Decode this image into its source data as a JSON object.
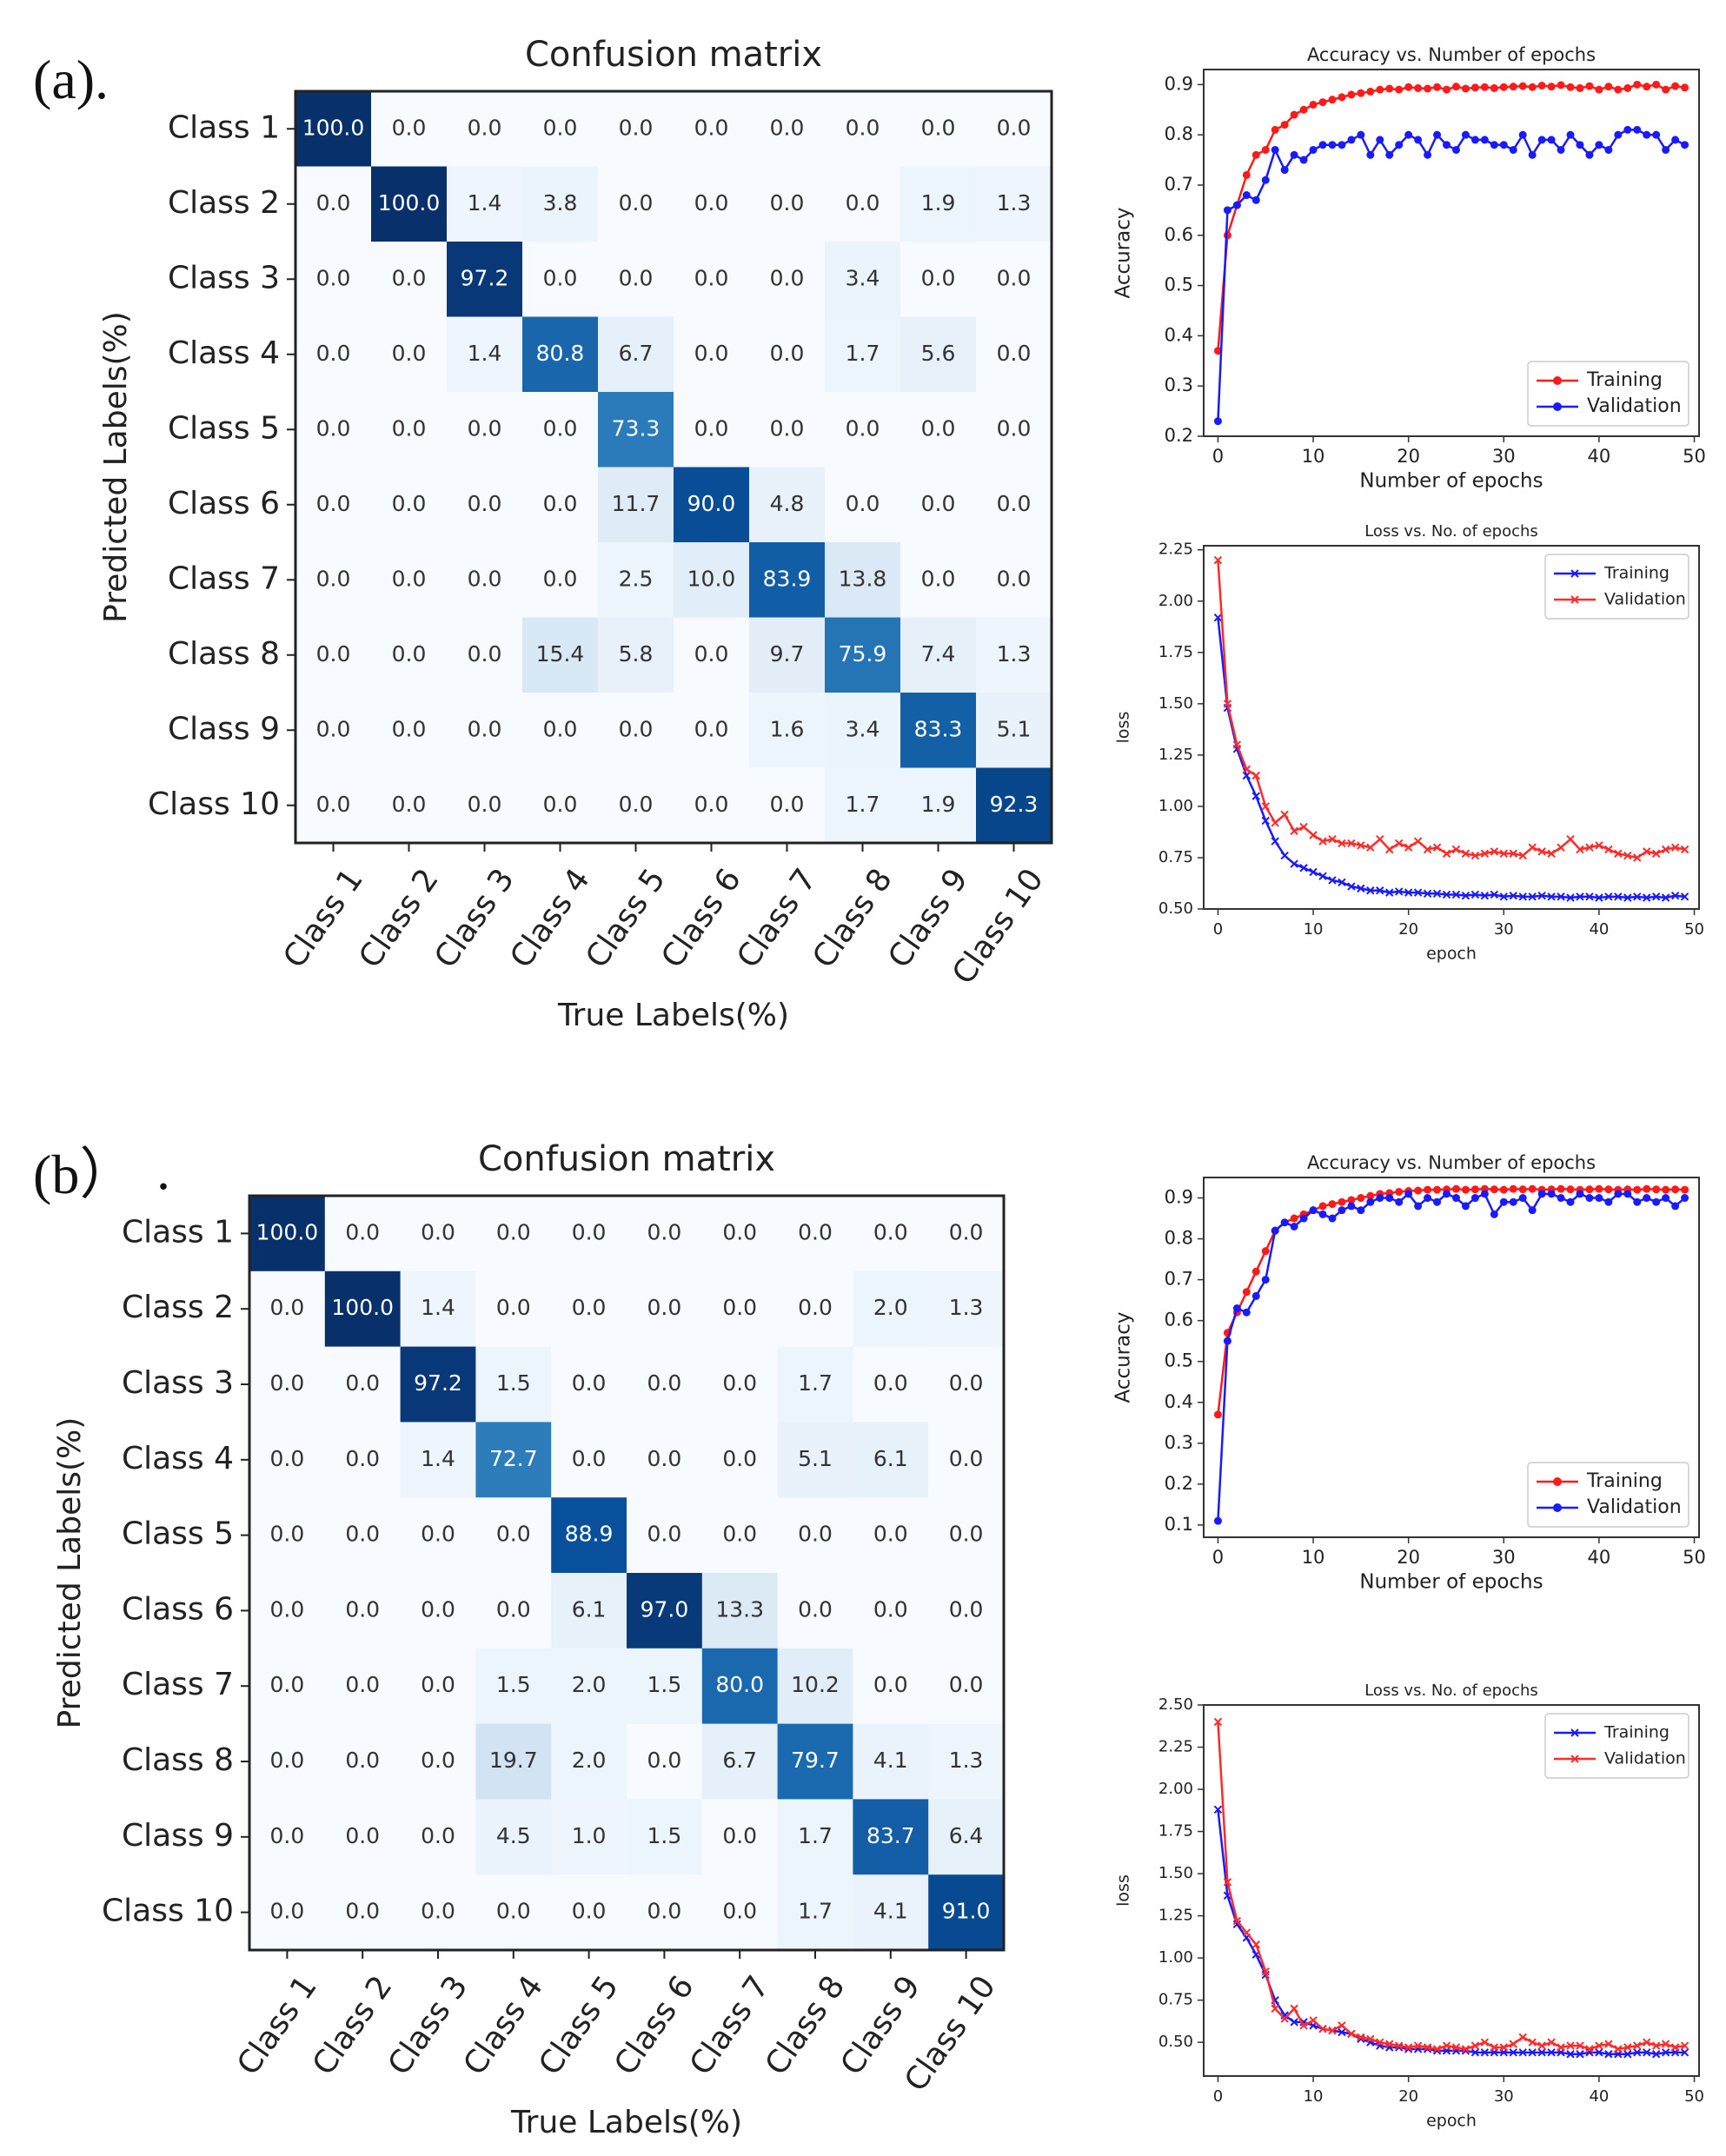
{
  "panels": {
    "a": "(a).",
    "b": "(b）",
    "b_dot": "."
  },
  "chart_data": [
    {
      "id": "cm_a",
      "type": "heatmap",
      "title": "Confusion matrix",
      "xlabel": "True Labels(%)",
      "ylabel": "Predicted Labels(%)",
      "row_labels": [
        "Class 1",
        "Class 2",
        "Class 3",
        "Class 4",
        "Class 5",
        "Class 6",
        "Class 7",
        "Class 8",
        "Class 9",
        "Class 10"
      ],
      "col_labels": [
        "Class 1",
        "Class 2",
        "Class 3",
        "Class 4",
        "Class 5",
        "Class 6",
        "Class 7",
        "Class 8",
        "Class 9",
        "Class 10"
      ],
      "values": [
        [
          100.0,
          0.0,
          0.0,
          0.0,
          0.0,
          0.0,
          0.0,
          0.0,
          0.0,
          0.0
        ],
        [
          0.0,
          100.0,
          1.4,
          3.8,
          0.0,
          0.0,
          0.0,
          0.0,
          1.9,
          1.3
        ],
        [
          0.0,
          0.0,
          97.2,
          0.0,
          0.0,
          0.0,
          0.0,
          3.4,
          0.0,
          0.0
        ],
        [
          0.0,
          0.0,
          1.4,
          80.8,
          6.7,
          0.0,
          0.0,
          1.7,
          5.6,
          0.0
        ],
        [
          0.0,
          0.0,
          0.0,
          0.0,
          73.3,
          0.0,
          0.0,
          0.0,
          0.0,
          0.0
        ],
        [
          0.0,
          0.0,
          0.0,
          0.0,
          11.7,
          90.0,
          4.8,
          0.0,
          0.0,
          0.0
        ],
        [
          0.0,
          0.0,
          0.0,
          0.0,
          2.5,
          10.0,
          83.9,
          13.8,
          0.0,
          0.0
        ],
        [
          0.0,
          0.0,
          0.0,
          15.4,
          5.8,
          0.0,
          9.7,
          75.9,
          7.4,
          1.3
        ],
        [
          0.0,
          0.0,
          0.0,
          0.0,
          0.0,
          0.0,
          1.6,
          3.4,
          83.3,
          5.1
        ],
        [
          0.0,
          0.0,
          0.0,
          0.0,
          0.0,
          0.0,
          0.0,
          1.7,
          1.9,
          92.3
        ]
      ],
      "colormap": "Blues"
    },
    {
      "id": "acc_a",
      "type": "line",
      "title": "Accuracy vs. Number of epochs",
      "xlabel": "Number of epochs",
      "ylabel": "Accuracy",
      "xlim": [
        -1.5,
        50.5
      ],
      "ylim": [
        0.2,
        0.93
      ],
      "xticks": [
        0,
        10,
        20,
        30,
        40,
        50
      ],
      "yticks": [
        0.2,
        0.3,
        0.4,
        0.5,
        0.6,
        0.7,
        0.8,
        0.9
      ],
      "legend_position": "bottom-right",
      "marker": "circle",
      "series": [
        {
          "name": "Training",
          "color": "#ff1a1a",
          "values": [
            0.37,
            0.6,
            0.66,
            0.72,
            0.76,
            0.77,
            0.81,
            0.82,
            0.84,
            0.85,
            0.86,
            0.865,
            0.87,
            0.875,
            0.88,
            0.883,
            0.886,
            0.89,
            0.892,
            0.89,
            0.895,
            0.893,
            0.892,
            0.895,
            0.89,
            0.896,
            0.892,
            0.894,
            0.895,
            0.893,
            0.895,
            0.896,
            0.897,
            0.895,
            0.898,
            0.896,
            0.899,
            0.895,
            0.893,
            0.897,
            0.89,
            0.896,
            0.89,
            0.893,
            0.9,
            0.896,
            0.9,
            0.89,
            0.897,
            0.894
          ]
        },
        {
          "name": "Validation",
          "color": "#1a1aff",
          "values": [
            0.23,
            0.65,
            0.66,
            0.68,
            0.67,
            0.71,
            0.77,
            0.73,
            0.76,
            0.75,
            0.77,
            0.78,
            0.78,
            0.78,
            0.79,
            0.8,
            0.76,
            0.79,
            0.76,
            0.78,
            0.8,
            0.79,
            0.76,
            0.8,
            0.78,
            0.77,
            0.8,
            0.79,
            0.79,
            0.78,
            0.78,
            0.77,
            0.8,
            0.76,
            0.79,
            0.79,
            0.77,
            0.8,
            0.78,
            0.76,
            0.78,
            0.77,
            0.8,
            0.81,
            0.81,
            0.8,
            0.8,
            0.77,
            0.79,
            0.78
          ]
        }
      ]
    },
    {
      "id": "loss_a",
      "type": "line",
      "title": "Loss vs. No. of epochs",
      "xlabel": "epoch",
      "ylabel": "loss",
      "xlim": [
        -1.5,
        50.5
      ],
      "ylim": [
        0.5,
        2.27
      ],
      "xticks": [
        0,
        10,
        20,
        30,
        40,
        50
      ],
      "yticks": [
        0.5,
        0.75,
        1.0,
        1.25,
        1.5,
        1.75,
        2.0,
        2.25
      ],
      "legend_position": "top-right",
      "marker": "x",
      "series": [
        {
          "name": "Training",
          "color": "#1a1aff",
          "values": [
            1.92,
            1.48,
            1.28,
            1.15,
            1.05,
            0.93,
            0.83,
            0.76,
            0.72,
            0.7,
            0.68,
            0.66,
            0.64,
            0.63,
            0.61,
            0.6,
            0.59,
            0.59,
            0.58,
            0.585,
            0.58,
            0.58,
            0.575,
            0.575,
            0.57,
            0.57,
            0.565,
            0.57,
            0.565,
            0.57,
            0.56,
            0.565,
            0.56,
            0.56,
            0.565,
            0.56,
            0.56,
            0.555,
            0.56,
            0.56,
            0.555,
            0.56,
            0.56,
            0.555,
            0.56,
            0.555,
            0.56,
            0.555,
            0.565,
            0.56
          ]
        },
        {
          "name": "Validation",
          "color": "#ff2a2a",
          "values": [
            2.2,
            1.5,
            1.3,
            1.18,
            1.15,
            1.0,
            0.92,
            0.96,
            0.88,
            0.9,
            0.86,
            0.83,
            0.84,
            0.82,
            0.82,
            0.81,
            0.8,
            0.84,
            0.79,
            0.82,
            0.8,
            0.83,
            0.79,
            0.8,
            0.77,
            0.79,
            0.77,
            0.76,
            0.77,
            0.78,
            0.77,
            0.77,
            0.76,
            0.8,
            0.78,
            0.77,
            0.8,
            0.84,
            0.79,
            0.8,
            0.81,
            0.79,
            0.77,
            0.76,
            0.75,
            0.78,
            0.77,
            0.79,
            0.8,
            0.79
          ]
        }
      ]
    },
    {
      "id": "cm_b",
      "type": "heatmap",
      "title": "Confusion matrix",
      "xlabel": "True Labels(%)",
      "ylabel": "Predicted Labels(%)",
      "row_labels": [
        "Class 1",
        "Class 2",
        "Class 3",
        "Class 4",
        "Class 5",
        "Class 6",
        "Class 7",
        "Class 8",
        "Class 9",
        "Class 10"
      ],
      "col_labels": [
        "Class 1",
        "Class 2",
        "Class 3",
        "Class 4",
        "Class 5",
        "Class 6",
        "Class 7",
        "Class 8",
        "Class 9",
        "Class 10"
      ],
      "values": [
        [
          100.0,
          0.0,
          0.0,
          0.0,
          0.0,
          0.0,
          0.0,
          0.0,
          0.0,
          0.0
        ],
        [
          0.0,
          100.0,
          1.4,
          0.0,
          0.0,
          0.0,
          0.0,
          0.0,
          2.0,
          1.3
        ],
        [
          0.0,
          0.0,
          97.2,
          1.5,
          0.0,
          0.0,
          0.0,
          1.7,
          0.0,
          0.0
        ],
        [
          0.0,
          0.0,
          1.4,
          72.7,
          0.0,
          0.0,
          0.0,
          5.1,
          6.1,
          0.0
        ],
        [
          0.0,
          0.0,
          0.0,
          0.0,
          88.9,
          0.0,
          0.0,
          0.0,
          0.0,
          0.0
        ],
        [
          0.0,
          0.0,
          0.0,
          0.0,
          6.1,
          97.0,
          13.3,
          0.0,
          0.0,
          0.0
        ],
        [
          0.0,
          0.0,
          0.0,
          1.5,
          2.0,
          1.5,
          80.0,
          10.2,
          0.0,
          0.0
        ],
        [
          0.0,
          0.0,
          0.0,
          19.7,
          2.0,
          0.0,
          6.7,
          79.7,
          4.1,
          1.3
        ],
        [
          0.0,
          0.0,
          0.0,
          4.5,
          1.0,
          1.5,
          0.0,
          1.7,
          83.7,
          6.4
        ],
        [
          0.0,
          0.0,
          0.0,
          0.0,
          0.0,
          0.0,
          0.0,
          1.7,
          4.1,
          91.0
        ]
      ],
      "colormap": "Blues"
    },
    {
      "id": "acc_b",
      "type": "line",
      "title": "Accuracy vs. Number of epochs",
      "xlabel": "Number of epochs",
      "ylabel": "Accuracy",
      "xlim": [
        -1.5,
        50.5
      ],
      "ylim": [
        0.07,
        0.95
      ],
      "xticks": [
        0,
        10,
        20,
        30,
        40,
        50
      ],
      "yticks": [
        0.1,
        0.2,
        0.3,
        0.4,
        0.5,
        0.6,
        0.7,
        0.8,
        0.9
      ],
      "legend_position": "bottom-right",
      "marker": "circle",
      "series": [
        {
          "name": "Training",
          "color": "#ff1a1a",
          "values": [
            0.37,
            0.57,
            0.62,
            0.67,
            0.72,
            0.77,
            0.82,
            0.84,
            0.85,
            0.86,
            0.87,
            0.88,
            0.885,
            0.89,
            0.895,
            0.9,
            0.905,
            0.91,
            0.912,
            0.915,
            0.917,
            0.918,
            0.92,
            0.92,
            0.921,
            0.922,
            0.92,
            0.921,
            0.922,
            0.921,
            0.92,
            0.922,
            0.921,
            0.922,
            0.92,
            0.921,
            0.922,
            0.921,
            0.92,
            0.921,
            0.922,
            0.921,
            0.92,
            0.921,
            0.92,
            0.922,
            0.921,
            0.92,
            0.921,
            0.92
          ]
        },
        {
          "name": "Validation",
          "color": "#1a1aff",
          "values": [
            0.11,
            0.55,
            0.63,
            0.62,
            0.66,
            0.7,
            0.82,
            0.84,
            0.83,
            0.85,
            0.87,
            0.86,
            0.85,
            0.87,
            0.88,
            0.87,
            0.89,
            0.9,
            0.9,
            0.89,
            0.91,
            0.88,
            0.9,
            0.89,
            0.91,
            0.9,
            0.88,
            0.9,
            0.91,
            0.86,
            0.89,
            0.89,
            0.9,
            0.87,
            0.91,
            0.91,
            0.9,
            0.89,
            0.91,
            0.9,
            0.9,
            0.89,
            0.91,
            0.91,
            0.89,
            0.9,
            0.89,
            0.9,
            0.88,
            0.9
          ]
        }
      ]
    },
    {
      "id": "loss_b",
      "type": "line",
      "title": "Loss vs. No. of epochs",
      "xlabel": "epoch",
      "ylabel": "loss",
      "xlim": [
        -1.5,
        50.5
      ],
      "ylim": [
        0.3,
        2.5
      ],
      "xticks": [
        0,
        10,
        20,
        30,
        40,
        50
      ],
      "yticks": [
        0.5,
        0.75,
        1.0,
        1.25,
        1.5,
        1.75,
        2.0,
        2.25,
        2.5
      ],
      "legend_position": "top-right",
      "marker": "x",
      "series": [
        {
          "name": "Training",
          "color": "#1a1aff",
          "values": [
            1.88,
            1.37,
            1.2,
            1.12,
            1.02,
            0.9,
            0.75,
            0.66,
            0.62,
            0.62,
            0.6,
            0.58,
            0.57,
            0.56,
            0.55,
            0.52,
            0.5,
            0.48,
            0.47,
            0.47,
            0.46,
            0.46,
            0.46,
            0.45,
            0.45,
            0.45,
            0.45,
            0.44,
            0.44,
            0.44,
            0.44,
            0.44,
            0.44,
            0.44,
            0.44,
            0.44,
            0.44,
            0.43,
            0.43,
            0.44,
            0.44,
            0.43,
            0.43,
            0.43,
            0.44,
            0.44,
            0.43,
            0.44,
            0.44,
            0.44
          ]
        },
        {
          "name": "Validation",
          "color": "#ff2a2a",
          "values": [
            2.4,
            1.45,
            1.22,
            1.15,
            1.08,
            0.92,
            0.7,
            0.64,
            0.7,
            0.6,
            0.63,
            0.58,
            0.57,
            0.6,
            0.55,
            0.53,
            0.52,
            0.5,
            0.49,
            0.48,
            0.47,
            0.48,
            0.47,
            0.46,
            0.48,
            0.47,
            0.46,
            0.48,
            0.5,
            0.47,
            0.47,
            0.49,
            0.53,
            0.5,
            0.48,
            0.5,
            0.47,
            0.48,
            0.48,
            0.46,
            0.48,
            0.49,
            0.46,
            0.47,
            0.48,
            0.5,
            0.48,
            0.49,
            0.47,
            0.48
          ]
        }
      ]
    }
  ]
}
